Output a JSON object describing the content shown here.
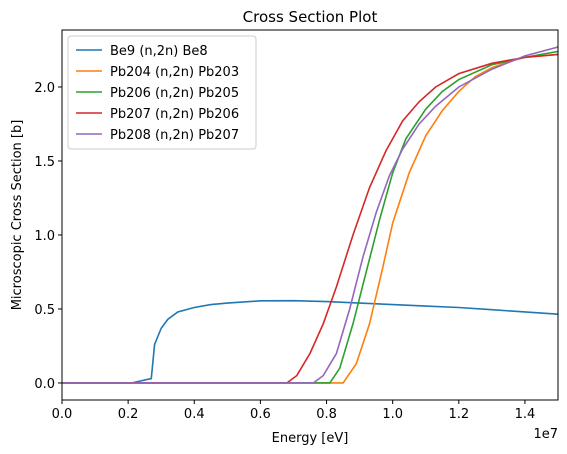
{
  "chart_data": {
    "type": "line",
    "title": "Cross Section Plot",
    "x_label": "Energy [eV]",
    "y_label": "Microscopic Cross Section [b]",
    "x_offset_label": "1e7",
    "xlim": [
      0,
      15000000
    ],
    "ylim": [
      -0.115,
      2.385
    ],
    "xticks": [
      {
        "value": 0,
        "label": "0.0"
      },
      {
        "value": 2000000,
        "label": "0.2"
      },
      {
        "value": 4000000,
        "label": "0.4"
      },
      {
        "value": 6000000,
        "label": "0.6"
      },
      {
        "value": 8000000,
        "label": "0.8"
      },
      {
        "value": 10000000,
        "label": "1.0"
      },
      {
        "value": 12000000,
        "label": "1.2"
      },
      {
        "value": 14000000,
        "label": "1.4"
      }
    ],
    "yticks": [
      {
        "value": 0,
        "label": "0.0"
      },
      0.5,
      {
        "value": 1,
        "label": "1.0"
      },
      1.5,
      {
        "value": 2,
        "label": "2.0"
      }
    ],
    "legend": "upper left",
    "series": [
      {
        "name": "Be9 (n,2n) Be8",
        "color": "#1f77b4",
        "x": [
          0,
          2100000,
          2300000,
          2700000,
          2800000,
          3000000,
          3200000,
          3500000,
          4000000,
          4500000,
          5000000,
          6000000,
          7000000,
          8000000,
          9000000,
          10000000,
          11000000,
          12000000,
          13000000,
          14000000,
          15000000
        ],
        "values": [
          0,
          0,
          0.01,
          0.03,
          0.26,
          0.37,
          0.43,
          0.48,
          0.51,
          0.53,
          0.54,
          0.555,
          0.556,
          0.55,
          0.54,
          0.53,
          0.52,
          0.51,
          0.495,
          0.48,
          0.465
        ]
      },
      {
        "name": "Pb204 (n,2n) Pb203",
        "color": "#ff7f0e",
        "x": [
          0,
          8500000,
          8900000,
          9300000,
          9700000,
          10000000,
          10500000,
          11000000,
          11500000,
          12000000,
          12500000,
          13000000,
          13500000,
          14000000,
          15000000
        ],
        "values": [
          0,
          0,
          0.13,
          0.4,
          0.78,
          1.08,
          1.42,
          1.67,
          1.84,
          1.97,
          2.07,
          2.13,
          2.17,
          2.2,
          2.22
        ]
      },
      {
        "name": "Pb206 (n,2n) Pb205",
        "color": "#2ca02c",
        "x": [
          0,
          8100000,
          8400000,
          8800000,
          9200000,
          9600000,
          10000000,
          10400000,
          11000000,
          11500000,
          12000000,
          13000000,
          14000000,
          15000000
        ],
        "values": [
          0,
          0,
          0.1,
          0.4,
          0.75,
          1.1,
          1.42,
          1.65,
          1.85,
          1.97,
          2.05,
          2.15,
          2.2,
          2.24
        ]
      },
      {
        "name": "Pb207 (n,2n) Pb206",
        "color": "#d62728",
        "x": [
          0,
          6800000,
          7100000,
          7500000,
          7900000,
          8300000,
          8800000,
          9300000,
          9800000,
          10300000,
          10800000,
          11300000,
          12000000,
          13000000,
          14000000,
          15000000
        ],
        "values": [
          0,
          0,
          0.05,
          0.2,
          0.4,
          0.65,
          1.0,
          1.32,
          1.57,
          1.77,
          1.9,
          2.0,
          2.09,
          2.16,
          2.2,
          2.22
        ]
      },
      {
        "name": "Pb208 (n,2n) Pb207",
        "color": "#9467bd",
        "x": [
          0,
          7600000,
          7900000,
          8300000,
          8700000,
          9100000,
          9500000,
          9900000,
          10300000,
          10800000,
          11300000,
          12000000,
          13000000,
          14000000,
          15000000
        ],
        "values": [
          0,
          0,
          0.05,
          0.2,
          0.5,
          0.85,
          1.15,
          1.4,
          1.58,
          1.75,
          1.87,
          2.0,
          2.12,
          2.21,
          2.27
        ]
      }
    ]
  }
}
